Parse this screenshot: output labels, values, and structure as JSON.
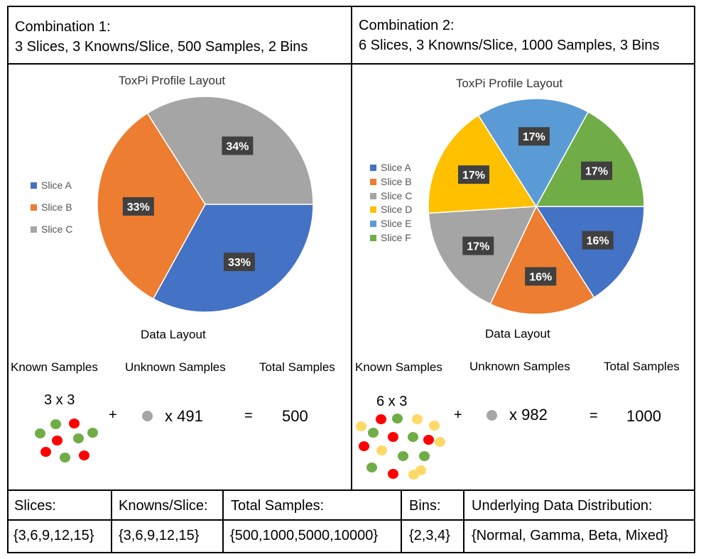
{
  "combination1": {
    "title_line1": "Combination 1:",
    "title_line2": "3 Slices, 3 Knowns/Slice, 500 Samples, 2 Bins",
    "data_layout_label": "Data Layout",
    "col_known": "Known Samples",
    "col_unknown": "Unknown Samples",
    "col_total": "Total Samples",
    "known_expr": "3 x 3",
    "plus": "+",
    "unknown_expr": "x 491",
    "equals": "=",
    "total": "500"
  },
  "combination2": {
    "title_line1": "Combination 2:",
    "title_line2": "6 Slices, 3 Knowns/Slice, 1000 Samples, 3 Bins",
    "data_layout_label": "Data Layout",
    "col_known": "Known Samples",
    "col_unknown": "Unknown Samples",
    "col_total": "Total Samples",
    "known_expr": "6 x 3",
    "plus": "+",
    "unknown_expr": "x 982",
    "equals": "=",
    "total": "1000"
  },
  "dot_colors": {
    "green": "#70ad47",
    "red": "#ff0000",
    "yellow": "#ffd966",
    "gray": "#a5a5a5"
  },
  "chart_data": [
    {
      "type": "pie",
      "title": "ToxPi Profile Layout",
      "legend_position": "left",
      "slices": [
        {
          "name": "Slice A",
          "value": 33,
          "label": "33%",
          "color": "#4472c4"
        },
        {
          "name": "Slice B",
          "value": 33,
          "label": "33%",
          "color": "#ed7d31"
        },
        {
          "name": "Slice C",
          "value": 34,
          "label": "34%",
          "color": "#a5a5a5"
        }
      ]
    },
    {
      "type": "pie",
      "title": "ToxPi Profile Layout",
      "legend_position": "left",
      "slices": [
        {
          "name": "Slice A",
          "value": 16,
          "label": "16%",
          "color": "#4472c4"
        },
        {
          "name": "Slice B",
          "value": 16,
          "label": "16%",
          "color": "#ed7d31"
        },
        {
          "name": "Slice C",
          "value": 17,
          "label": "17%",
          "color": "#a5a5a5"
        },
        {
          "name": "Slice D",
          "value": 17,
          "label": "17%",
          "color": "#ffc000"
        },
        {
          "name": "Slice E",
          "value": 17,
          "label": "17%",
          "color": "#5b9bd5"
        },
        {
          "name": "Slice F",
          "value": 17,
          "label": "17%",
          "color": "#70ad47"
        }
      ]
    }
  ],
  "parameter_table": {
    "headers": [
      "Slices:",
      "Knowns/Slice:",
      "Total Samples:",
      "Bins:",
      "Underlying Data Distribution:"
    ],
    "values": [
      "{3,6,9,12,15}",
      "{3,6,9,12,15}",
      "{500,1000,5000,10000}",
      "{2,3,4}",
      "{Normal, Gamma, Beta, Mixed}"
    ]
  }
}
